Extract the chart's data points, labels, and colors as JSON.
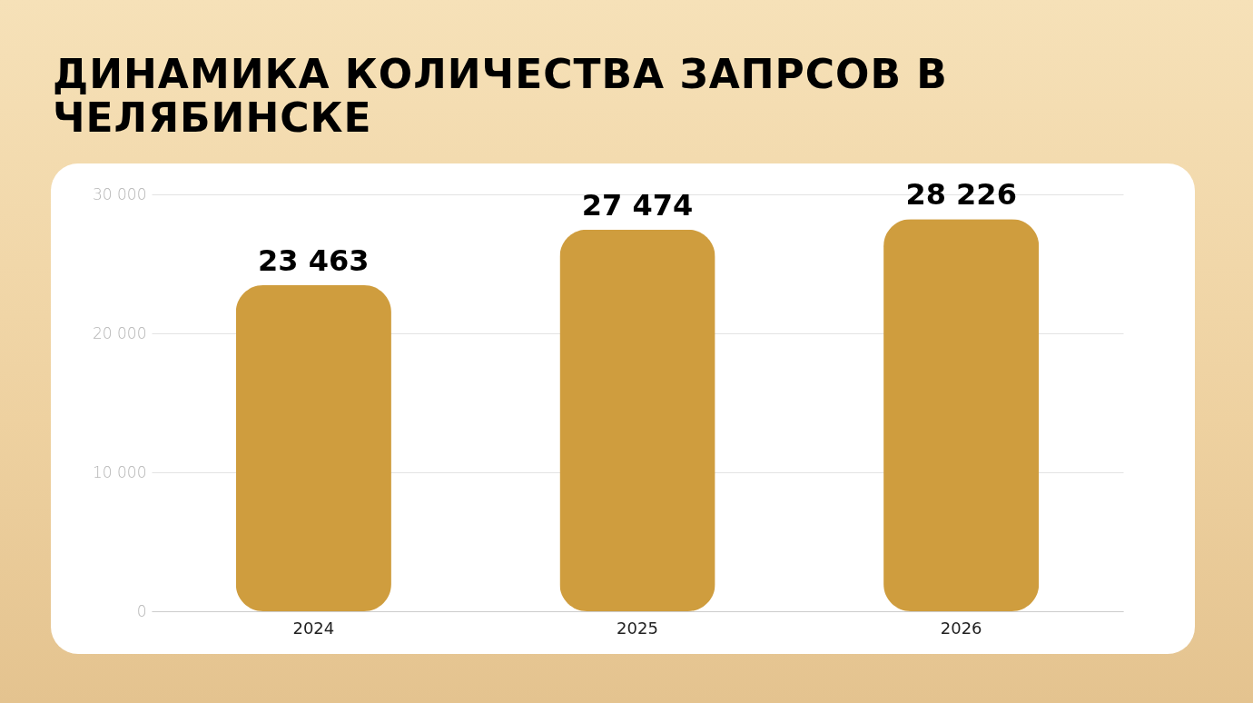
{
  "chart_data": {
    "type": "bar",
    "title": "ДИНАМИКА КОЛИЧЕСТВА ЗАПРСОВ В ЧЕЛЯБИНСКЕ",
    "categories": [
      "2024",
      "2025",
      "2026"
    ],
    "values": [
      23463,
      27474,
      28226
    ],
    "value_labels": [
      "23 463",
      "27 474",
      "28 226"
    ],
    "color": "#cf9d3e",
    "ylim": [
      0,
      30000
    ],
    "yticks": [
      0,
      {
        "value": 10000,
        "label": "10 000"
      },
      {
        "value": 20000,
        "label": "20 000"
      },
      {
        "value": 30000,
        "label": "30 000"
      }
    ],
    "grid": "y"
  }
}
